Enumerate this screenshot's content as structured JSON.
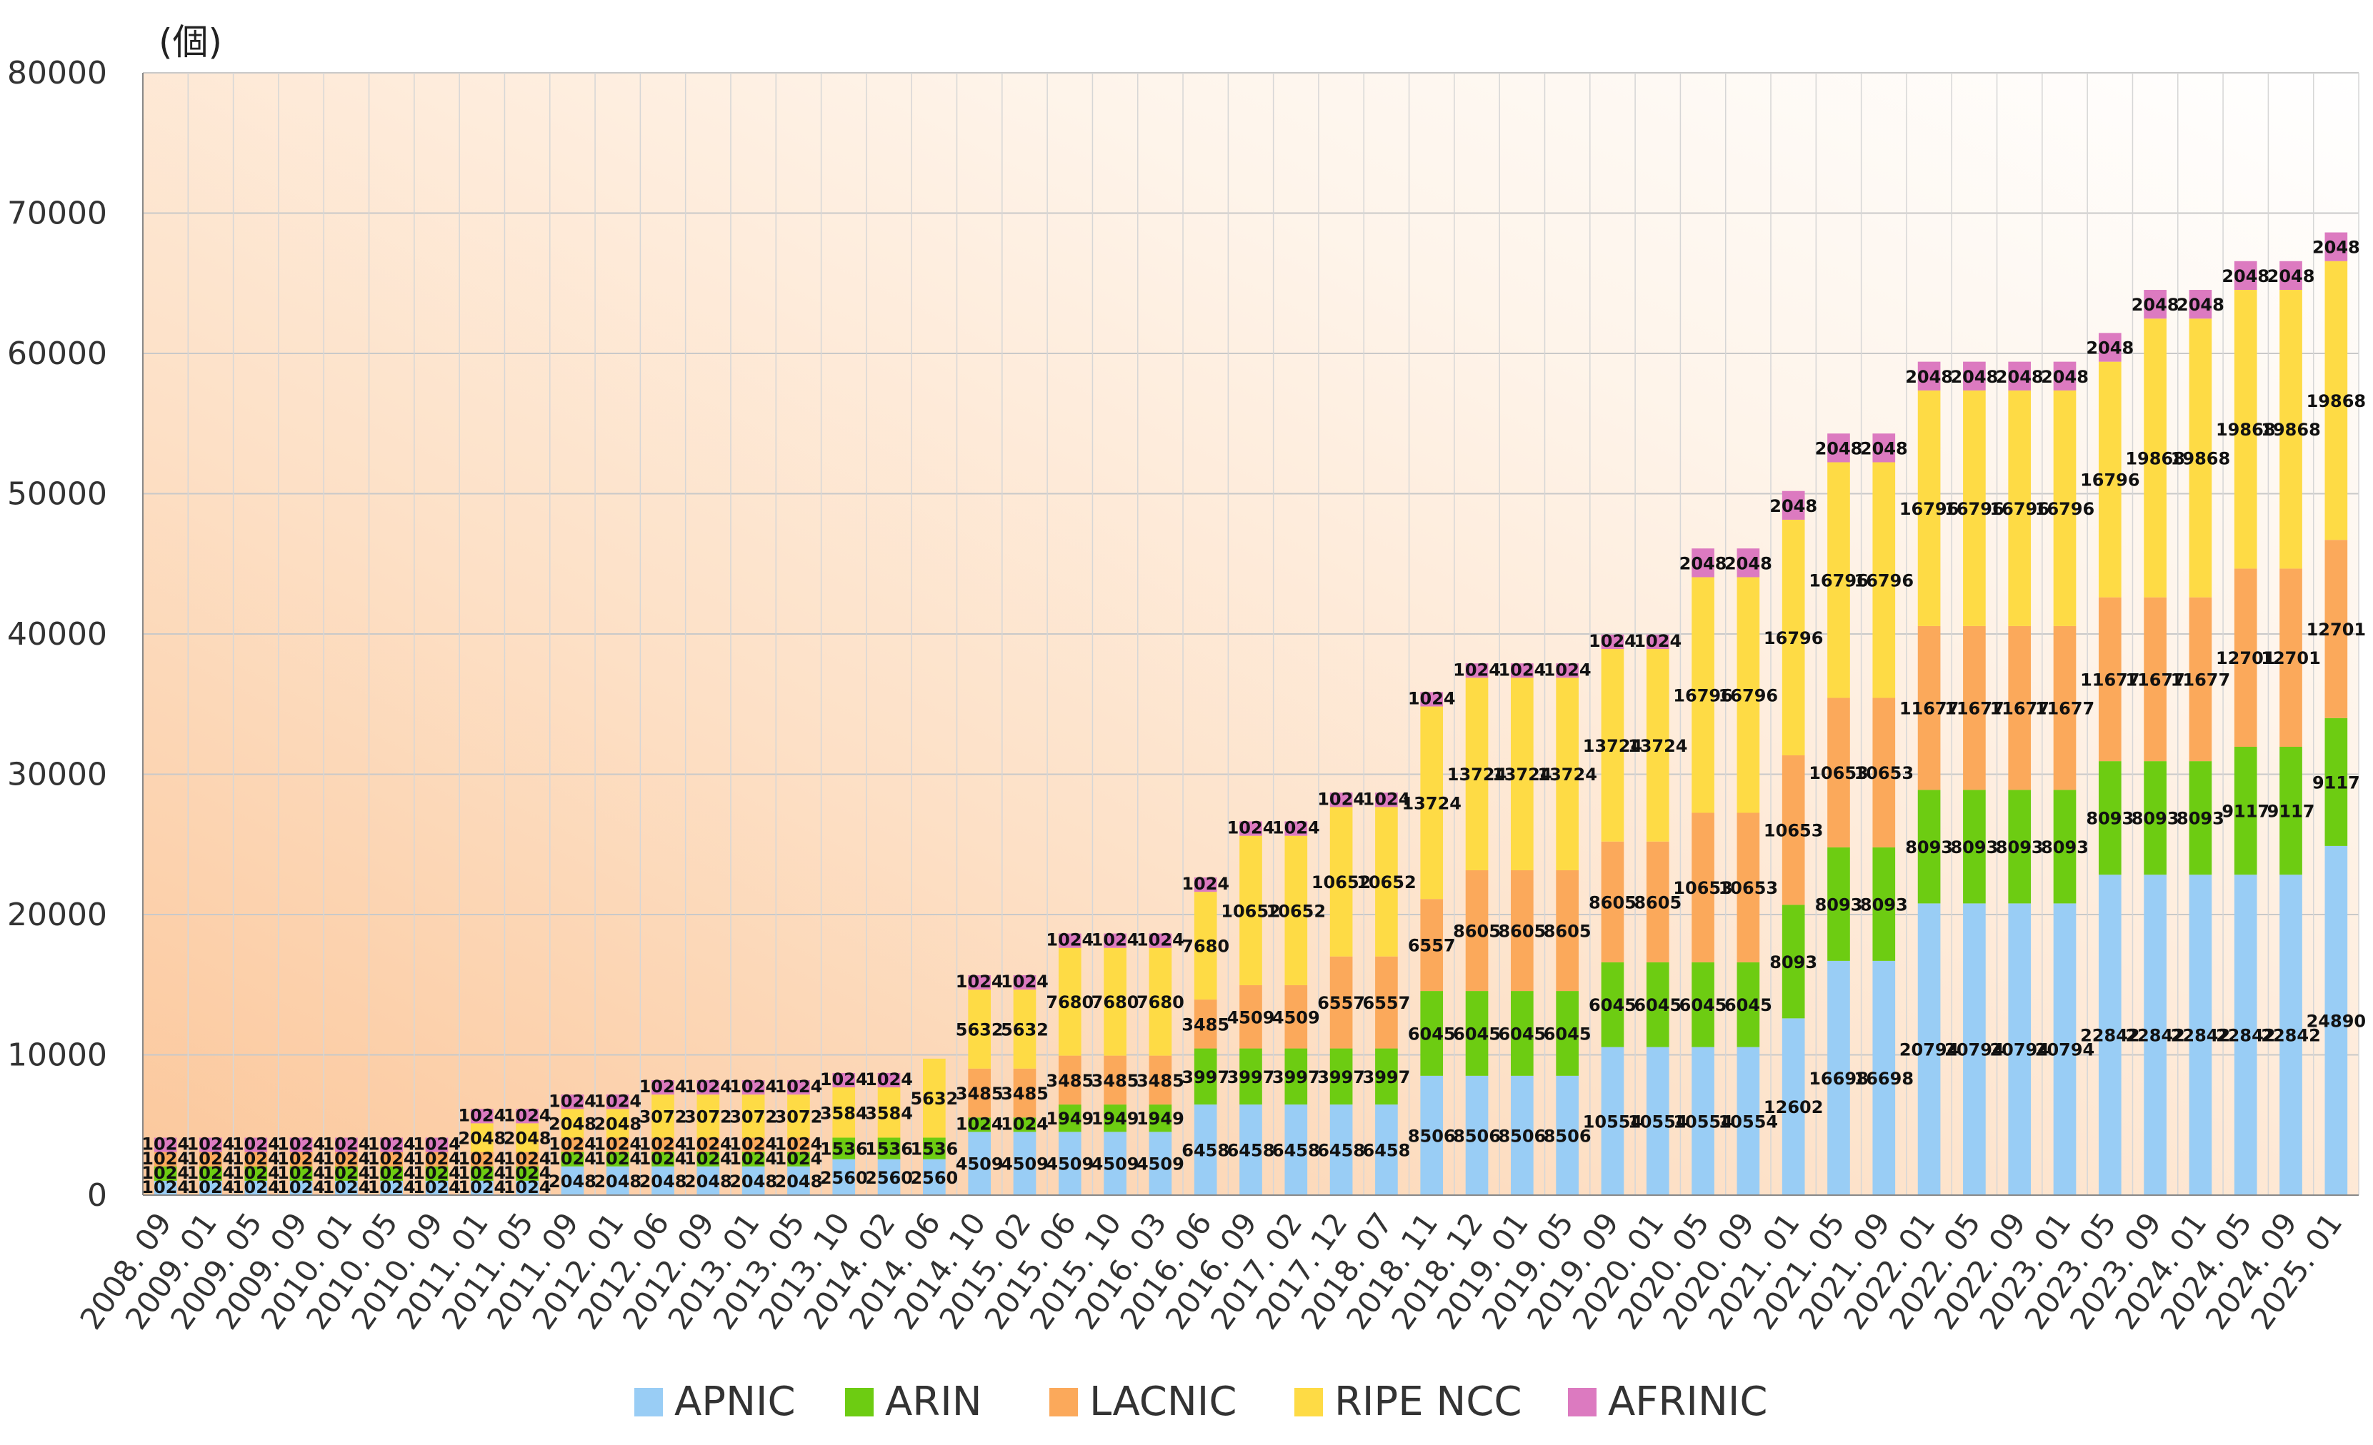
{
  "chart_data": {
    "type": "bar",
    "stacked": true,
    "unit_label": "(個)",
    "ylim": [
      0,
      80000
    ],
    "yticks": [
      "0",
      "10000",
      "20000",
      "30000",
      "40000",
      "50000",
      "60000",
      "70000",
      "80000"
    ],
    "grid": true,
    "legend_position": "bottom",
    "categories": [
      "2008. 09",
      "2009. 01",
      "2009. 05",
      "2009. 09",
      "2010. 01",
      "2010. 05",
      "2010. 09",
      "2011. 01",
      "2011. 05",
      "2011. 09",
      "2012. 01",
      "2012. 06",
      "2012. 09",
      "2013. 01",
      "2013. 05",
      "2013. 10",
      "2014. 02",
      "2014. 06",
      "2014. 10",
      "2015. 02",
      "2015. 06",
      "2015. 10",
      "2016. 03",
      "2016. 06",
      "2016. 09",
      "2017. 02",
      "2017. 12",
      "2018. 07",
      "2018. 11",
      "2018. 12",
      "2019. 01",
      "2019. 05",
      "2019. 09",
      "2020. 01",
      "2020. 05",
      "2020. 09",
      "2021. 01",
      "2021. 05",
      "2021. 09",
      "2022. 01",
      "2022. 05",
      "2022. 09",
      "2023. 01",
      "2023. 05",
      "2023. 09",
      "2024. 01",
      "2024. 05",
      "2024. 09",
      "2025. 01"
    ],
    "series": [
      {
        "name": "APNIC",
        "color": "#99cdf5",
        "values": [
          1024,
          1024,
          1024,
          1024,
          1024,
          1024,
          1024,
          1024,
          1024,
          2048,
          2048,
          2048,
          2048,
          2048,
          2048,
          2560,
          2560,
          2560,
          4509,
          4509,
          4509,
          4509,
          4509,
          6458,
          6458,
          6458,
          6458,
          6458,
          8506,
          8506,
          8506,
          8506,
          10554,
          10554,
          10554,
          10554,
          12602,
          16698,
          16698,
          20794,
          20794,
          20794,
          20794,
          22842,
          22842,
          22842,
          22842,
          22842,
          24890
        ]
      },
      {
        "name": "ARIN",
        "color": "#6dcc12",
        "values": [
          1024,
          1024,
          1024,
          1024,
          1024,
          1024,
          1024,
          1024,
          1024,
          1024,
          1024,
          1024,
          1024,
          1024,
          1024,
          1536,
          1536,
          1536,
          1024,
          1024,
          1949,
          1949,
          1949,
          3997,
          3997,
          3997,
          3997,
          3997,
          6045,
          6045,
          6045,
          6045,
          6045,
          6045,
          6045,
          6045,
          8093,
          8093,
          8093,
          8093,
          8093,
          8093,
          8093,
          8093,
          8093,
          8093,
          9117,
          9117,
          9117
        ]
      },
      {
        "name": "LACNIC",
        "color": "#fba95b",
        "values": [
          1024,
          1024,
          1024,
          1024,
          1024,
          1024,
          1024,
          1024,
          1024,
          1024,
          1024,
          1024,
          1024,
          1024,
          1024,
          0,
          0,
          0,
          3485,
          3485,
          3485,
          3485,
          3485,
          3485,
          4509,
          4509,
          6557,
          6557,
          6557,
          8605,
          8605,
          8605,
          8605,
          8605,
          10653,
          10653,
          10653,
          10653,
          10653,
          11677,
          11677,
          11677,
          11677,
          11677,
          11677,
          11677,
          12701,
          12701,
          12701
        ]
      },
      {
        "name": "RIPE NCC",
        "color": "#fedb45",
        "values": [
          0,
          0,
          0,
          0,
          0,
          0,
          0,
          2048,
          2048,
          2048,
          2048,
          3072,
          3072,
          3072,
          3072,
          3584,
          3584,
          5632,
          5632,
          5632,
          7680,
          7680,
          7680,
          7680,
          10652,
          10652,
          10652,
          10652,
          13724,
          13724,
          13724,
          13724,
          13724,
          13724,
          16796,
          16796,
          16796,
          16796,
          16796,
          16796,
          16796,
          16796,
          16796,
          16796,
          19868,
          19868,
          19868,
          19868,
          19868
        ]
      },
      {
        "name": "AFRINIC",
        "color": "#dc7ac0",
        "values": [
          1024,
          1024,
          1024,
          1024,
          1024,
          1024,
          1024,
          1024,
          1024,
          1024,
          1024,
          1024,
          1024,
          1024,
          1024,
          1024,
          1024,
          0,
          1024,
          1024,
          1024,
          1024,
          1024,
          1024,
          1024,
          1024,
          1024,
          1024,
          1024,
          1024,
          1024,
          1024,
          1024,
          1024,
          2048,
          2048,
          2048,
          2048,
          2048,
          2048,
          2048,
          2048,
          2048,
          2048,
          2048,
          2048,
          2048,
          2048,
          2048
        ]
      }
    ]
  }
}
